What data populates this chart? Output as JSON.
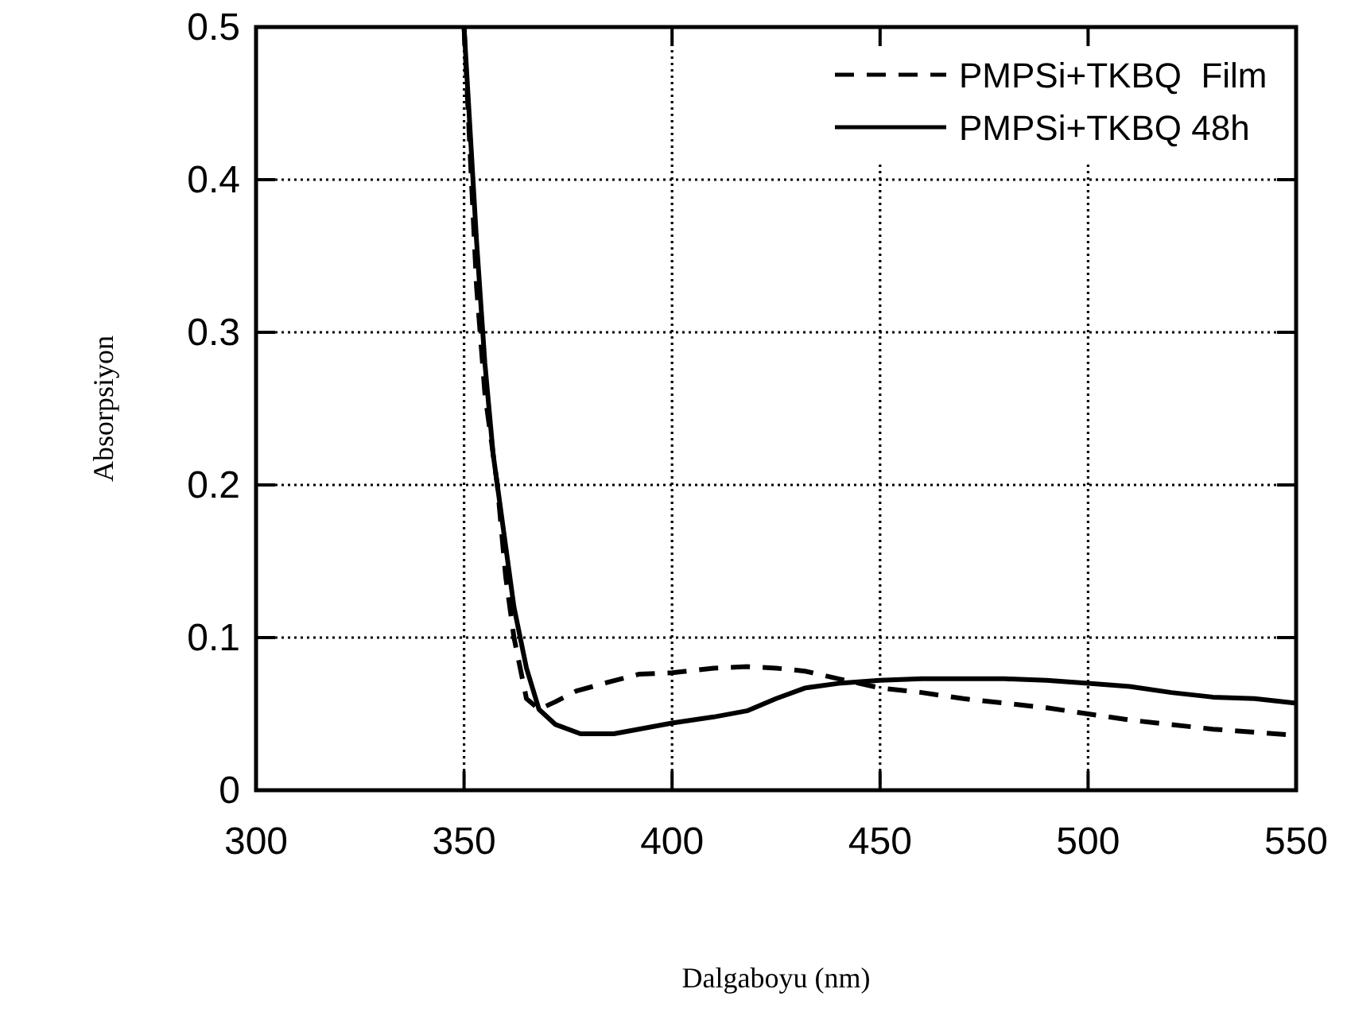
{
  "chart_data": {
    "type": "line",
    "xlabel": "Dalgaboyu (nm)",
    "ylabel": "Absorpsiyon",
    "xlim": [
      300,
      550
    ],
    "xticks": [
      300,
      350,
      400,
      450,
      500,
      550
    ],
    "ylim": [
      0,
      0.5
    ],
    "yticks": [
      0,
      0.1,
      0.2,
      0.3,
      0.4,
      0.5
    ],
    "grid": true,
    "legend": "top right",
    "marker": "none",
    "series": [
      {
        "name": "PMPSi+TKBQ  Film",
        "color": "#000000",
        "line_style": "dashed",
        "x": [
          350,
          353,
          355,
          357,
          358,
          360,
          362,
          365,
          368,
          372,
          377,
          385,
          392,
          400,
          410,
          418,
          425,
          432,
          440,
          450,
          460,
          470,
          480,
          490,
          500,
          510,
          520,
          530,
          540,
          550
        ],
        "values": [
          0.5,
          0.33,
          0.26,
          0.22,
          0.2,
          0.14,
          0.1,
          0.06,
          0.053,
          0.058,
          0.065,
          0.071,
          0.076,
          0.077,
          0.08,
          0.081,
          0.08,
          0.078,
          0.073,
          0.067,
          0.064,
          0.06,
          0.057,
          0.054,
          0.05,
          0.046,
          0.043,
          0.04,
          0.038,
          0.036
        ]
      },
      {
        "name": "PMPSi+TKBQ 48h",
        "color": "#000000",
        "line_style": "solid",
        "x": [
          350,
          353,
          355,
          357,
          358,
          360,
          362,
          365,
          368,
          372,
          378,
          386,
          392,
          400,
          410,
          418,
          425,
          432,
          440,
          450,
          460,
          470,
          480,
          490,
          500,
          510,
          520,
          530,
          540,
          550
        ],
        "values": [
          0.5,
          0.36,
          0.28,
          0.22,
          0.2,
          0.16,
          0.12,
          0.08,
          0.053,
          0.043,
          0.037,
          0.037,
          0.04,
          0.044,
          0.048,
          0.052,
          0.06,
          0.067,
          0.07,
          0.072,
          0.073,
          0.073,
          0.073,
          0.072,
          0.07,
          0.068,
          0.064,
          0.061,
          0.06,
          0.057
        ]
      }
    ]
  }
}
